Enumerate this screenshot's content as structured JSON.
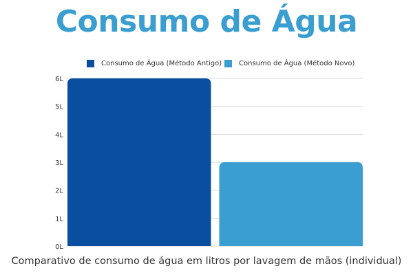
{
  "chart_data": {
    "type": "bar",
    "title": "Consumo de Água",
    "subtitle": "Comparativo de consumo de água em litros por lavagem de mãos (individual)",
    "series": [
      {
        "name": "Consumo de Água (Método Antigo)",
        "values": [
          6
        ],
        "color": "#0a4ea0"
      },
      {
        "name": "Consumo de Água (Método Novo)",
        "values": [
          3
        ],
        "color": "#3a9fd0"
      }
    ],
    "ylim": [
      0,
      6
    ],
    "yticks": [
      "0L",
      "1L",
      "2L",
      "3L",
      "4L",
      "5L",
      "6L"
    ],
    "grid": true,
    "legend_position": "top"
  }
}
